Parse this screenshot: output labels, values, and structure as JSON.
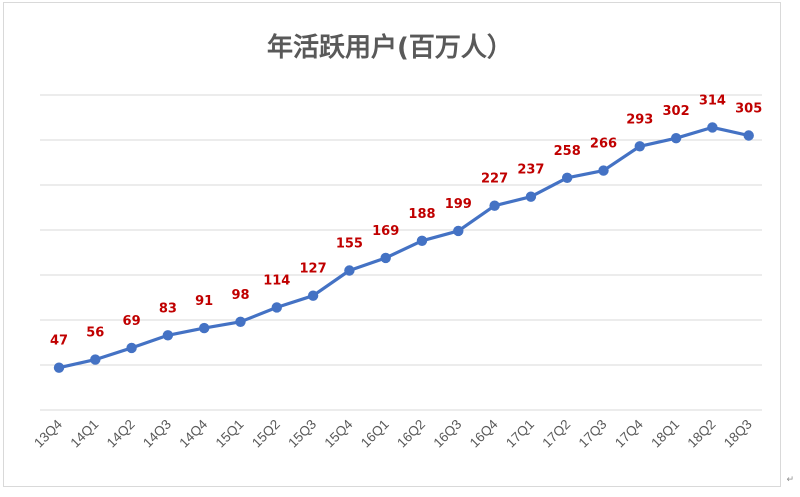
{
  "chart_data": {
    "type": "line",
    "title": "年活跃用户(百万人）",
    "categories": [
      "13Q4",
      "14Q1",
      "14Q2",
      "14Q3",
      "14Q4",
      "15Q1",
      "15Q2",
      "15Q3",
      "15Q4",
      "16Q1",
      "16Q2",
      "16Q3",
      "16Q4",
      "17Q1",
      "17Q2",
      "17Q3",
      "17Q4",
      "18Q1",
      "18Q2",
      "18Q3"
    ],
    "series": [
      {
        "values": [
          47,
          56,
          69,
          83,
          91,
          98,
          114,
          127,
          155,
          169,
          188,
          199,
          227,
          237,
          258,
          266,
          293,
          302,
          314,
          305
        ]
      }
    ],
    "ylim": [
      0,
      350
    ],
    "grid": "horizontal",
    "legend": "none",
    "colors": {
      "line": "#4472c4",
      "data_labels": "#c00000",
      "grid": "#d9d9d9",
      "text": "#595959"
    }
  },
  "corner_mark": "↵"
}
